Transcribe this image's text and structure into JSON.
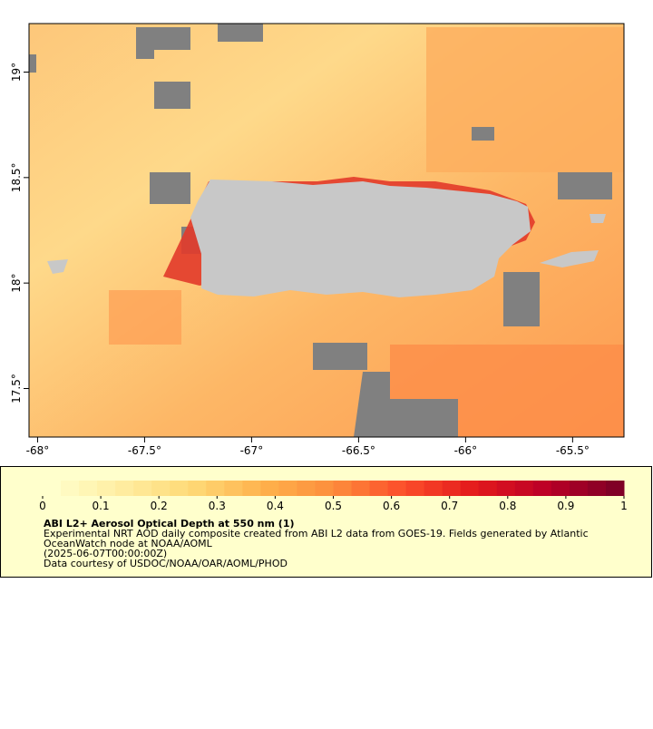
{
  "map": {
    "xlim": [
      -68.04,
      -65.26
    ],
    "ylim": [
      17.27,
      19.23
    ],
    "xticks": [
      {
        "value": -68,
        "label": "-68°"
      },
      {
        "value": -67.5,
        "label": "-67.5°"
      },
      {
        "value": -67,
        "label": "-67°"
      },
      {
        "value": -66.5,
        "label": "-66.5°"
      },
      {
        "value": -66,
        "label": "-66°"
      },
      {
        "value": -65.5,
        "label": "-65.5°"
      }
    ],
    "yticks": [
      {
        "value": 17.5,
        "label": "17.5°"
      },
      {
        "value": 18,
        "label": "18°"
      },
      {
        "value": 18.5,
        "label": "18.5°"
      },
      {
        "value": 19,
        "label": "19°"
      }
    ]
  },
  "colorbar": {
    "lim": [
      0,
      1
    ],
    "ticks": [
      0,
      0.1,
      0.2,
      0.3,
      0.4,
      0.5,
      0.6,
      0.7,
      0.8,
      0.9,
      1
    ],
    "steps": 32,
    "color_stops": [
      "#ffffcc",
      "#ffeda0",
      "#fed976",
      "#feb24c",
      "#fd8d3c",
      "#fc4e2a",
      "#e31a1c",
      "#bd0026",
      "#800026"
    ]
  },
  "legend": {
    "title": "ABI L2+ Aerosol Optical Depth at 550 nm (1)",
    "lines": [
      "Experimental NRT AOD daily composite created from ABI L2 data from GOES-19. Fields generated by Atlantic",
      "OceanWatch node at NOAA/AOML",
      "(2025-06-07T00:00:00Z)",
      "Data courtesy of USDOC/NOAA/OAR/AOML/PHOD"
    ]
  }
}
